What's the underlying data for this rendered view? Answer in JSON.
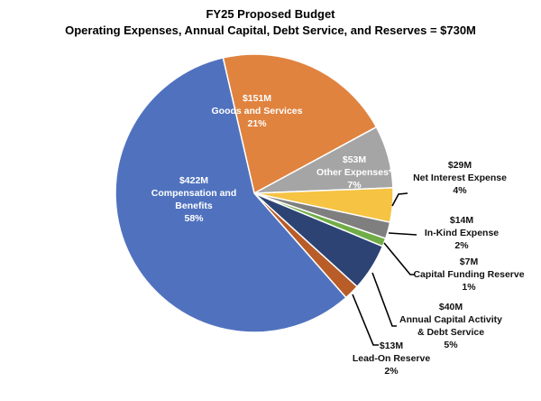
{
  "chart_data": {
    "type": "pie",
    "title": "FY25 Proposed Budget",
    "subtitle": "Operating Expenses, Annual Capital, Debt Service, and Reserves = $730M",
    "slices": [
      {
        "amount": "$151M",
        "name": "Goods and Services",
        "pct": "21%",
        "value": 151,
        "color": "#E0833F"
      },
      {
        "amount": "$53M",
        "name": "Other Expenses*",
        "pct": "7%",
        "value": 53,
        "color": "#A5A5A5"
      },
      {
        "amount": "$29M",
        "name": "Net Interest Expense",
        "pct": "4%",
        "value": 29,
        "color": "#F6C342"
      },
      {
        "amount": "$14M",
        "name": "In-Kind Expense",
        "pct": "2%",
        "value": 14,
        "color": "#7F7F7F"
      },
      {
        "amount": "$7M",
        "name": "Capital Funding Reserve",
        "pct": "1%",
        "value": 7,
        "color": "#70AD47"
      },
      {
        "amount": "$40M",
        "name": "Annual Capital Activity",
        "name2": "& Debt Service",
        "pct": "5%",
        "value": 40,
        "color": "#2C4374"
      },
      {
        "amount": "$13M",
        "name": "Lead-On Reserve",
        "pct": "2%",
        "value": 13,
        "color": "#B85C28"
      },
      {
        "amount": "$422M",
        "name": "Compensation and",
        "name2": "Benefits",
        "pct": "58%",
        "value": 422,
        "color": "#5072BE"
      }
    ]
  }
}
